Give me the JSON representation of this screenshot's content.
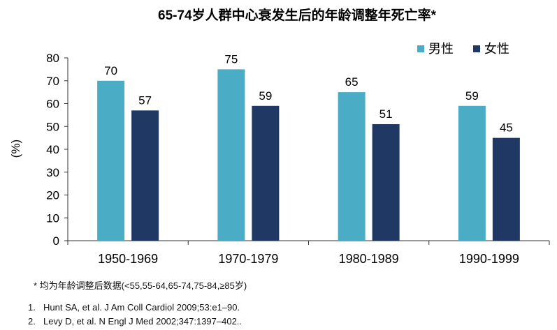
{
  "chart_data": {
    "type": "bar",
    "title": "65-74岁人群中心衰发生后的年龄调整年死亡率*",
    "xlabel": "",
    "ylabel": "(%)",
    "ylim": [
      0,
      80
    ],
    "yticks": [
      0,
      10,
      20,
      30,
      40,
      50,
      60,
      70,
      80
    ],
    "categories": [
      "1950-1969",
      "1970-1979",
      "1980-1989",
      "1990-1999"
    ],
    "series": [
      {
        "name": "男性",
        "values": [
          70,
          75,
          65,
          59
        ],
        "color": "#4bacc6"
      },
      {
        "name": "女性",
        "values": [
          57,
          59,
          51,
          45
        ],
        "color": "#1f3864"
      }
    ],
    "legend_position": "top-right",
    "grid": false,
    "data_labels": true
  },
  "footnote": "* 均为年龄调整后数据(<55,55-64,65-74,75-84,≥85岁)",
  "references": [
    {
      "number": "1.",
      "text": "Hunt SA, et al. J Am Coll Cardiol 2009;53:e1–90."
    },
    {
      "number": "2.",
      "text": "Levy D, et al. N Engl J Med 2002;347:1397–402.."
    }
  ]
}
